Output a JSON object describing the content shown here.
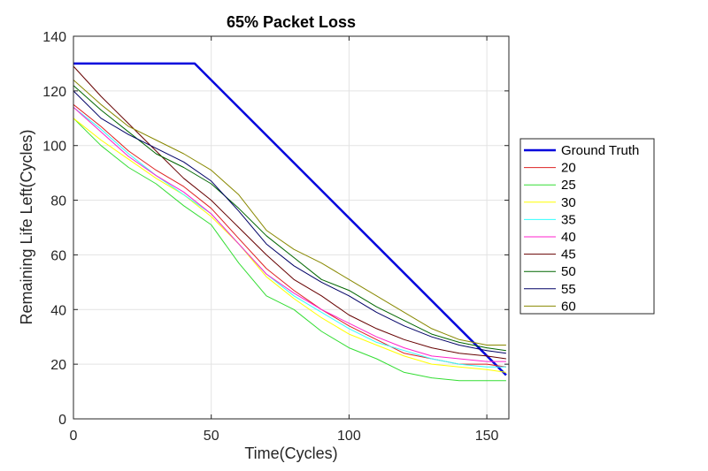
{
  "chart_data": {
    "type": "line",
    "title": "65% Packet Loss",
    "xlabel": "Time(Cycles)",
    "ylabel": "Remaining Life Left(Cycles)",
    "xlim": [
      0,
      158
    ],
    "ylim": [
      0,
      140
    ],
    "xticks": [
      0,
      50,
      100,
      150
    ],
    "yticks": [
      0,
      20,
      40,
      60,
      80,
      100,
      120,
      140
    ],
    "grid": true,
    "legend_position": "right",
    "x": [
      0,
      10,
      20,
      30,
      40,
      50,
      60,
      70,
      80,
      90,
      100,
      110,
      120,
      130,
      140,
      150,
      157
    ],
    "series": [
      {
        "name": "Ground Truth",
        "color": "#0000dd",
        "x": [
          0,
          44,
          157
        ],
        "values": [
          130,
          130,
          16
        ]
      },
      {
        "name": "20",
        "color": "#dd2222",
        "values": [
          115,
          107,
          98,
          91,
          85,
          77,
          66,
          55,
          47,
          40,
          34,
          29,
          24,
          22,
          20,
          20,
          19
        ]
      },
      {
        "name": "25",
        "color": "#33dd33",
        "values": [
          110,
          100,
          92,
          86,
          78,
          71,
          57,
          45,
          40,
          32,
          26,
          22,
          17,
          15,
          14,
          14,
          14
        ]
      },
      {
        "name": "30",
        "color": "#ffff00",
        "values": [
          110,
          102,
          95,
          88,
          82,
          74,
          64,
          52,
          44,
          37,
          31,
          27,
          23,
          20,
          19,
          18,
          17
        ]
      },
      {
        "name": "35",
        "color": "#33ffff",
        "values": [
          114,
          106,
          97,
          89,
          82,
          75,
          64,
          53,
          45,
          39,
          33,
          28,
          25,
          22,
          20,
          19,
          19
        ]
      },
      {
        "name": "40",
        "color": "#ff22cc",
        "values": [
          114,
          105,
          96,
          89,
          83,
          75,
          64,
          53,
          46,
          40,
          35,
          30,
          26,
          23,
          22,
          21,
          21
        ]
      },
      {
        "name": "45",
        "color": "#660000",
        "values": [
          129,
          118,
          108,
          98,
          88,
          80,
          70,
          60,
          51,
          45,
          38,
          33,
          29,
          26,
          24,
          23,
          22
        ]
      },
      {
        "name": "50",
        "color": "#006600",
        "values": [
          122,
          113,
          105,
          97,
          92,
          86,
          77,
          67,
          59,
          51,
          47,
          41,
          36,
          31,
          28,
          26,
          25
        ]
      },
      {
        "name": "55",
        "color": "#000066",
        "values": [
          120,
          110,
          104,
          99,
          94,
          87,
          76,
          64,
          56,
          50,
          45,
          39,
          34,
          30,
          27,
          25,
          24
        ]
      },
      {
        "name": "60",
        "color": "#888800",
        "values": [
          124,
          115,
          107,
          102,
          97,
          91,
          82,
          69,
          62,
          57,
          51,
          45,
          39,
          33,
          29,
          27,
          27
        ]
      }
    ]
  }
}
